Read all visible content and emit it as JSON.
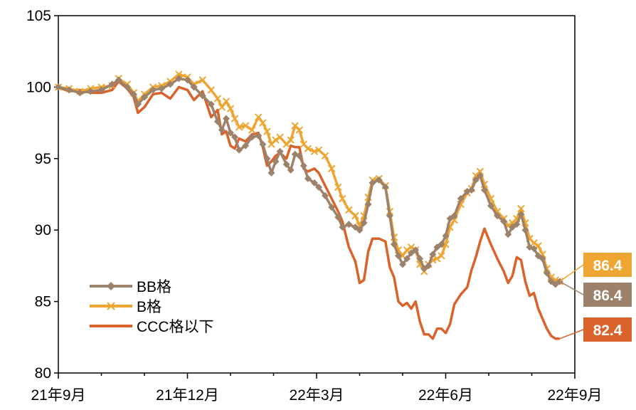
{
  "chart_data": {
    "type": "line",
    "title": "",
    "xlabel": "",
    "ylabel": "",
    "ylim": [
      80,
      105
    ],
    "yticks": [
      80,
      85,
      90,
      95,
      100,
      105
    ],
    "x_ticks": [
      "21年9月",
      "21年12月",
      "22年3月",
      "22年6月",
      "22年9月"
    ],
    "x_range": [
      0,
      12
    ],
    "grid": false,
    "legend_position": "bottom-left",
    "series": [
      {
        "name": "BB格",
        "color": "#9C826B",
        "marker": "diamond",
        "end_label": "86.4",
        "points": [
          [
            0,
            100.0
          ],
          [
            0.25,
            99.8
          ],
          [
            0.5,
            99.6
          ],
          [
            0.75,
            99.7
          ],
          [
            1.0,
            99.8
          ],
          [
            1.25,
            100.2
          ],
          [
            1.4,
            100.5
          ],
          [
            1.6,
            100.0
          ],
          [
            1.75,
            99.5
          ],
          [
            1.85,
            98.8
          ],
          [
            2.0,
            99.3
          ],
          [
            2.2,
            99.8
          ],
          [
            2.4,
            99.9
          ],
          [
            2.6,
            100.2
          ],
          [
            2.8,
            100.6
          ],
          [
            3.0,
            100.5
          ],
          [
            3.15,
            100.0
          ],
          [
            3.35,
            99.4
          ],
          [
            3.55,
            98.8
          ],
          [
            3.7,
            97.6
          ],
          [
            3.8,
            97.0
          ],
          [
            3.9,
            97.8
          ],
          [
            4.0,
            96.8
          ],
          [
            4.1,
            96.5
          ],
          [
            4.2,
            95.6
          ],
          [
            4.35,
            95.9
          ],
          [
            4.5,
            96.5
          ],
          [
            4.65,
            96.6
          ],
          [
            4.75,
            96.0
          ],
          [
            4.85,
            95.0
          ],
          [
            4.95,
            94.0
          ],
          [
            5.05,
            94.8
          ],
          [
            5.15,
            95.5
          ],
          [
            5.3,
            94.6
          ],
          [
            5.4,
            94.2
          ],
          [
            5.5,
            95.3
          ],
          [
            5.6,
            95.2
          ],
          [
            5.7,
            94.5
          ],
          [
            5.8,
            93.6
          ],
          [
            5.95,
            93.3
          ],
          [
            6.05,
            93.0
          ],
          [
            6.2,
            92.4
          ],
          [
            6.35,
            91.6
          ],
          [
            6.5,
            90.9
          ],
          [
            6.6,
            90.2
          ],
          [
            6.75,
            90.4
          ],
          [
            6.9,
            90.2
          ],
          [
            7.0,
            90.0
          ],
          [
            7.1,
            90.5
          ],
          [
            7.2,
            91.8
          ],
          [
            7.3,
            93.3
          ],
          [
            7.45,
            93.5
          ],
          [
            7.6,
            93.0
          ],
          [
            7.7,
            91.0
          ],
          [
            7.8,
            89.0
          ],
          [
            7.9,
            88.2
          ],
          [
            8.0,
            87.6
          ],
          [
            8.1,
            88.0
          ],
          [
            8.2,
            88.4
          ],
          [
            8.3,
            88.6
          ],
          [
            8.4,
            88.0
          ],
          [
            8.5,
            87.3
          ],
          [
            8.6,
            87.5
          ],
          [
            8.7,
            88.3
          ],
          [
            8.8,
            88.8
          ],
          [
            8.9,
            89.0
          ],
          [
            9.0,
            89.6
          ],
          [
            9.1,
            90.8
          ],
          [
            9.2,
            91.0
          ],
          [
            9.35,
            92.2
          ],
          [
            9.5,
            92.7
          ],
          [
            9.6,
            92.8
          ],
          [
            9.7,
            93.5
          ],
          [
            9.8,
            93.8
          ],
          [
            9.9,
            92.8
          ],
          [
            10.05,
            91.7
          ],
          [
            10.2,
            91.0
          ],
          [
            10.35,
            90.6
          ],
          [
            10.45,
            89.7
          ],
          [
            10.55,
            90.2
          ],
          [
            10.65,
            90.4
          ],
          [
            10.75,
            91.1
          ],
          [
            10.85,
            90.0
          ],
          [
            10.95,
            88.8
          ],
          [
            11.05,
            88.7
          ],
          [
            11.15,
            88.2
          ],
          [
            11.25,
            88.0
          ],
          [
            11.35,
            87.0
          ],
          [
            11.45,
            86.4
          ],
          [
            11.55,
            86.2
          ],
          [
            11.65,
            86.4
          ]
        ]
      },
      {
        "name": "B格",
        "color": "#EFA532",
        "marker": "x",
        "end_label": "86.4",
        "points": [
          [
            0,
            100.0
          ],
          [
            0.25,
            99.9
          ],
          [
            0.5,
            99.7
          ],
          [
            0.75,
            99.9
          ],
          [
            1.0,
            100.0
          ],
          [
            1.25,
            100.1
          ],
          [
            1.4,
            100.6
          ],
          [
            1.6,
            100.2
          ],
          [
            1.75,
            99.6
          ],
          [
            1.85,
            99.0
          ],
          [
            2.0,
            99.5
          ],
          [
            2.2,
            100.0
          ],
          [
            2.4,
            100.1
          ],
          [
            2.6,
            100.4
          ],
          [
            2.8,
            100.9
          ],
          [
            3.0,
            100.7
          ],
          [
            3.15,
            100.2
          ],
          [
            3.35,
            100.5
          ],
          [
            3.55,
            99.8
          ],
          [
            3.7,
            99.2
          ],
          [
            3.8,
            98.6
          ],
          [
            3.9,
            99.0
          ],
          [
            4.0,
            98.5
          ],
          [
            4.1,
            97.8
          ],
          [
            4.2,
            97.2
          ],
          [
            4.35,
            97.3
          ],
          [
            4.5,
            97.0
          ],
          [
            4.65,
            97.9
          ],
          [
            4.75,
            97.5
          ],
          [
            4.85,
            96.9
          ],
          [
            4.95,
            96.0
          ],
          [
            5.05,
            96.3
          ],
          [
            5.15,
            96.5
          ],
          [
            5.3,
            96.0
          ],
          [
            5.4,
            96.3
          ],
          [
            5.5,
            97.3
          ],
          [
            5.6,
            97.0
          ],
          [
            5.7,
            96.0
          ],
          [
            5.8,
            95.7
          ],
          [
            5.95,
            95.5
          ],
          [
            6.05,
            95.6
          ],
          [
            6.2,
            95.2
          ],
          [
            6.35,
            94.3
          ],
          [
            6.5,
            93.0
          ],
          [
            6.6,
            92.2
          ],
          [
            6.75,
            91.4
          ],
          [
            6.9,
            91.0
          ],
          [
            7.0,
            90.3
          ],
          [
            7.1,
            91.0
          ],
          [
            7.2,
            92.3
          ],
          [
            7.3,
            93.5
          ],
          [
            7.45,
            93.6
          ],
          [
            7.6,
            93.1
          ],
          [
            7.7,
            91.3
          ],
          [
            7.8,
            89.5
          ],
          [
            7.9,
            88.6
          ],
          [
            8.0,
            88.2
          ],
          [
            8.1,
            88.6
          ],
          [
            8.2,
            88.8
          ],
          [
            8.3,
            88.6
          ],
          [
            8.4,
            87.6
          ],
          [
            8.5,
            87.1
          ],
          [
            8.6,
            87.6
          ],
          [
            8.7,
            87.9
          ],
          [
            8.8,
            88.0
          ],
          [
            8.9,
            88.2
          ],
          [
            9.0,
            89.0
          ],
          [
            9.1,
            90.2
          ],
          [
            9.2,
            90.7
          ],
          [
            9.35,
            91.8
          ],
          [
            9.5,
            92.6
          ],
          [
            9.6,
            92.9
          ],
          [
            9.7,
            93.8
          ],
          [
            9.8,
            94.1
          ],
          [
            9.9,
            93.2
          ],
          [
            10.05,
            92.2
          ],
          [
            10.2,
            91.3
          ],
          [
            10.35,
            90.8
          ],
          [
            10.45,
            90.3
          ],
          [
            10.55,
            90.5
          ],
          [
            10.65,
            90.8
          ],
          [
            10.75,
            91.5
          ],
          [
            10.85,
            90.5
          ],
          [
            10.95,
            89.4
          ],
          [
            11.05,
            89.1
          ],
          [
            11.15,
            88.9
          ],
          [
            11.25,
            88.3
          ],
          [
            11.35,
            87.3
          ],
          [
            11.45,
            86.7
          ],
          [
            11.55,
            86.5
          ],
          [
            11.65,
            86.4
          ]
        ]
      },
      {
        "name": "CCC格以下",
        "color": "#D9632B",
        "marker": "none",
        "end_label": "82.4",
        "points": [
          [
            0,
            100.0
          ],
          [
            0.25,
            99.7
          ],
          [
            0.5,
            99.8
          ],
          [
            0.75,
            99.6
          ],
          [
            1.0,
            99.6
          ],
          [
            1.25,
            99.8
          ],
          [
            1.4,
            100.4
          ],
          [
            1.6,
            99.9
          ],
          [
            1.75,
            99.3
          ],
          [
            1.85,
            98.2
          ],
          [
            2.0,
            98.6
          ],
          [
            2.2,
            99.5
          ],
          [
            2.4,
            99.6
          ],
          [
            2.6,
            99.2
          ],
          [
            2.8,
            100.0
          ],
          [
            3.0,
            99.8
          ],
          [
            3.15,
            99.1
          ],
          [
            3.35,
            99.7
          ],
          [
            3.55,
            97.9
          ],
          [
            3.7,
            98.4
          ],
          [
            3.8,
            96.7
          ],
          [
            3.9,
            96.9
          ],
          [
            4.0,
            95.9
          ],
          [
            4.1,
            95.7
          ],
          [
            4.2,
            96.4
          ],
          [
            4.35,
            96.2
          ],
          [
            4.5,
            96.7
          ],
          [
            4.65,
            96.8
          ],
          [
            4.75,
            95.8
          ],
          [
            4.85,
            94.5
          ],
          [
            4.95,
            94.8
          ],
          [
            5.05,
            95.2
          ],
          [
            5.15,
            95.4
          ],
          [
            5.3,
            95.0
          ],
          [
            5.4,
            95.9
          ],
          [
            5.5,
            95.8
          ],
          [
            5.6,
            95.8
          ],
          [
            5.7,
            94.3
          ],
          [
            5.8,
            94.1
          ],
          [
            5.95,
            94.3
          ],
          [
            6.05,
            94.0
          ],
          [
            6.2,
            93.1
          ],
          [
            6.35,
            92.2
          ],
          [
            6.5,
            91.3
          ],
          [
            6.6,
            90.6
          ],
          [
            6.75,
            88.8
          ],
          [
            6.9,
            87.8
          ],
          [
            7.0,
            86.3
          ],
          [
            7.1,
            86.5
          ],
          [
            7.2,
            88.5
          ],
          [
            7.3,
            89.4
          ],
          [
            7.45,
            89.4
          ],
          [
            7.6,
            89.2
          ],
          [
            7.7,
            87.4
          ],
          [
            7.8,
            86.7
          ],
          [
            7.9,
            85.0
          ],
          [
            8.0,
            84.7
          ],
          [
            8.1,
            84.9
          ],
          [
            8.2,
            84.5
          ],
          [
            8.3,
            85.0
          ],
          [
            8.4,
            83.6
          ],
          [
            8.5,
            82.7
          ],
          [
            8.6,
            82.7
          ],
          [
            8.7,
            82.4
          ],
          [
            8.8,
            83.1
          ],
          [
            8.9,
            83.1
          ],
          [
            9.0,
            82.8
          ],
          [
            9.1,
            83.4
          ],
          [
            9.2,
            84.8
          ],
          [
            9.35,
            85.5
          ],
          [
            9.5,
            86.0
          ],
          [
            9.6,
            87.2
          ],
          [
            9.7,
            88.1
          ],
          [
            9.8,
            89.2
          ],
          [
            9.9,
            90.1
          ],
          [
            10.05,
            89.0
          ],
          [
            10.2,
            88.0
          ],
          [
            10.35,
            87.1
          ],
          [
            10.45,
            86.3
          ],
          [
            10.55,
            86.8
          ],
          [
            10.65,
            88.1
          ],
          [
            10.75,
            87.9
          ],
          [
            10.85,
            86.4
          ],
          [
            10.95,
            85.4
          ],
          [
            11.05,
            85.6
          ],
          [
            11.15,
            84.5
          ],
          [
            11.25,
            83.8
          ],
          [
            11.35,
            83.1
          ],
          [
            11.45,
            82.6
          ],
          [
            11.55,
            82.4
          ],
          [
            11.65,
            82.4
          ]
        ]
      }
    ]
  }
}
